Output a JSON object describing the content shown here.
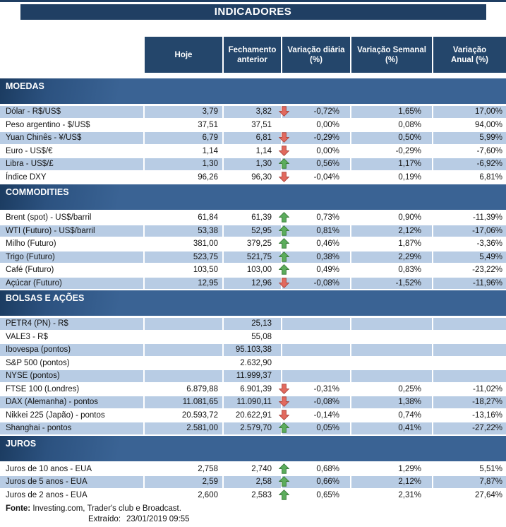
{
  "title": "INDICADORES",
  "columns": [
    {
      "line1": "Hoje",
      "line2": ""
    },
    {
      "line1": "Fechamento",
      "line2": "anterior"
    },
    {
      "line1": "Variação diária",
      "line2": "(%)"
    },
    {
      "line1": "Variação Semanal",
      "line2": "(%)"
    },
    {
      "line1": "Variação",
      "line2": "Anual (%)"
    }
  ],
  "sections": [
    {
      "name": "MOEDAS",
      "rows": [
        {
          "label": "Dólar - R$/US$",
          "hoje": "3,79",
          "fechamento": "3,82",
          "arrow": "down",
          "var_diaria": "-0,72%",
          "var_semanal": "1,65%",
          "var_anual": "17,00%"
        },
        {
          "label": "Peso argentino - $/US$",
          "hoje": "37,51",
          "fechamento": "37,51",
          "arrow": "",
          "var_diaria": "0,00%",
          "var_semanal": "0,08%",
          "var_anual": "94,00%"
        },
        {
          "label": "Yuan Chinês - ¥/US$",
          "hoje": "6,79",
          "fechamento": "6,81",
          "arrow": "down",
          "var_diaria": "-0,29%",
          "var_semanal": "0,50%",
          "var_anual": "5,99%"
        },
        {
          "label": "Euro - US$/€",
          "hoje": "1,14",
          "fechamento": "1,14",
          "arrow": "down",
          "var_diaria": "0,00%",
          "var_semanal": "-0,29%",
          "var_anual": "-7,60%"
        },
        {
          "label": "Libra - US$/£",
          "hoje": "1,30",
          "fechamento": "1,30",
          "arrow": "up",
          "var_diaria": "0,56%",
          "var_semanal": "1,17%",
          "var_anual": "-6,92%"
        },
        {
          "label": "Índice DXY",
          "hoje": "96,26",
          "fechamento": "96,30",
          "arrow": "down",
          "var_diaria": "-0,04%",
          "var_semanal": "0,19%",
          "var_anual": "6,81%"
        }
      ]
    },
    {
      "name": "COMMODITIES",
      "rows": [
        {
          "label": "Brent (spot) - US$/barril",
          "hoje": "61,84",
          "fechamento": "61,39",
          "arrow": "up",
          "var_diaria": "0,73%",
          "var_semanal": "0,90%",
          "var_anual": "-11,39%"
        },
        {
          "label": "WTI (Futuro) - US$/barril",
          "hoje": "53,38",
          "fechamento": "52,95",
          "arrow": "up",
          "var_diaria": "0,81%",
          "var_semanal": "2,12%",
          "var_anual": "-17,06%"
        },
        {
          "label": "Milho (Futuro)",
          "hoje": "381,00",
          "fechamento": "379,25",
          "arrow": "up",
          "var_diaria": "0,46%",
          "var_semanal": "1,87%",
          "var_anual": "-3,36%"
        },
        {
          "label": "Trigo (Futuro)",
          "hoje": "523,75",
          "fechamento": "521,75",
          "arrow": "up",
          "var_diaria": "0,38%",
          "var_semanal": "2,29%",
          "var_anual": "5,49%"
        },
        {
          "label": "Café (Futuro)",
          "hoje": "103,50",
          "fechamento": "103,00",
          "arrow": "up",
          "var_diaria": "0,49%",
          "var_semanal": "0,83%",
          "var_anual": "-23,22%"
        },
        {
          "label": "Açúcar (Futuro)",
          "hoje": "12,95",
          "fechamento": "12,96",
          "arrow": "down",
          "var_diaria": "-0,08%",
          "var_semanal": "-1,52%",
          "var_anual": "-11,96%"
        }
      ]
    },
    {
      "name": "BOLSAS E AÇÕES",
      "rows": [
        {
          "label": "PETR4 (PN) - R$",
          "hoje": "",
          "fechamento": "25,13",
          "arrow": "",
          "var_diaria": "",
          "var_semanal": "",
          "var_anual": ""
        },
        {
          "label": "VALE3 - R$",
          "hoje": "",
          "fechamento": "55,08",
          "arrow": "",
          "var_diaria": "",
          "var_semanal": "",
          "var_anual": ""
        },
        {
          "label": "Ibovespa (pontos)",
          "hoje": "",
          "fechamento": "95.103,38",
          "arrow": "",
          "var_diaria": "",
          "var_semanal": "",
          "var_anual": ""
        },
        {
          "label": "S&P 500 (pontos)",
          "hoje": "",
          "fechamento": "2.632,90",
          "arrow": "",
          "var_diaria": "",
          "var_semanal": "",
          "var_anual": ""
        },
        {
          "label": "NYSE (pontos)",
          "hoje": "",
          "fechamento": "11.999,37",
          "arrow": "",
          "var_diaria": "",
          "var_semanal": "",
          "var_anual": ""
        },
        {
          "label": "FTSE 100 (Londres)",
          "hoje": "6.879,88",
          "fechamento": "6.901,39",
          "arrow": "down",
          "var_diaria": "-0,31%",
          "var_semanal": "0,25%",
          "var_anual": "-11,02%"
        },
        {
          "label": "DAX (Alemanha) - pontos",
          "hoje": "11.081,65",
          "fechamento": "11.090,11",
          "arrow": "down",
          "var_diaria": "-0,08%",
          "var_semanal": "1,38%",
          "var_anual": "-18,27%"
        },
        {
          "label": "Nikkei 225 (Japão) - pontos",
          "hoje": "20.593,72",
          "fechamento": "20.622,91",
          "arrow": "down",
          "var_diaria": "-0,14%",
          "var_semanal": "0,74%",
          "var_anual": "-13,16%"
        },
        {
          "label": "Shanghai - pontos",
          "hoje": "2.581,00",
          "fechamento": "2.579,70",
          "arrow": "up",
          "var_diaria": "0,05%",
          "var_semanal": "0,41%",
          "var_anual": "-27,22%"
        }
      ]
    },
    {
      "name": "JUROS",
      "rows": [
        {
          "label": "Juros de 10 anos - EUA",
          "hoje": "2,758",
          "fechamento": "2,740",
          "arrow": "up",
          "var_diaria": "0,68%",
          "var_semanal": "1,29%",
          "var_anual": "5,51%"
        },
        {
          "label": "Juros de 5 anos - EUA",
          "hoje": "2,59",
          "fechamento": "2,58",
          "arrow": "up",
          "var_diaria": "0,66%",
          "var_semanal": "2,12%",
          "var_anual": "7,87%"
        },
        {
          "label": "Juros de 2 anos - EUA",
          "hoje": "2,600",
          "fechamento": "2,583",
          "arrow": "up",
          "var_diaria": "0,65%",
          "var_semanal": "2,31%",
          "var_anual": "27,64%"
        }
      ]
    }
  ],
  "footer": {
    "fonte_label": "Fonte:",
    "fonte_text": " Investing.com, Trader's club e Broadcast.",
    "extraido_label": "Extraído:",
    "extraido_value": "23/01/2019 09:55"
  },
  "colors": {
    "navy": "#203F63",
    "header_box": "#24466B",
    "section_dark": "#1B3B60",
    "section_light": "#3A6394",
    "row_shaded": "#B8CCE4",
    "arrow_up_fill": "#5CAD5C",
    "arrow_up_stroke": "#3F7E3F",
    "arrow_down_fill": "#E2695E",
    "arrow_down_stroke": "#B04A42"
  }
}
